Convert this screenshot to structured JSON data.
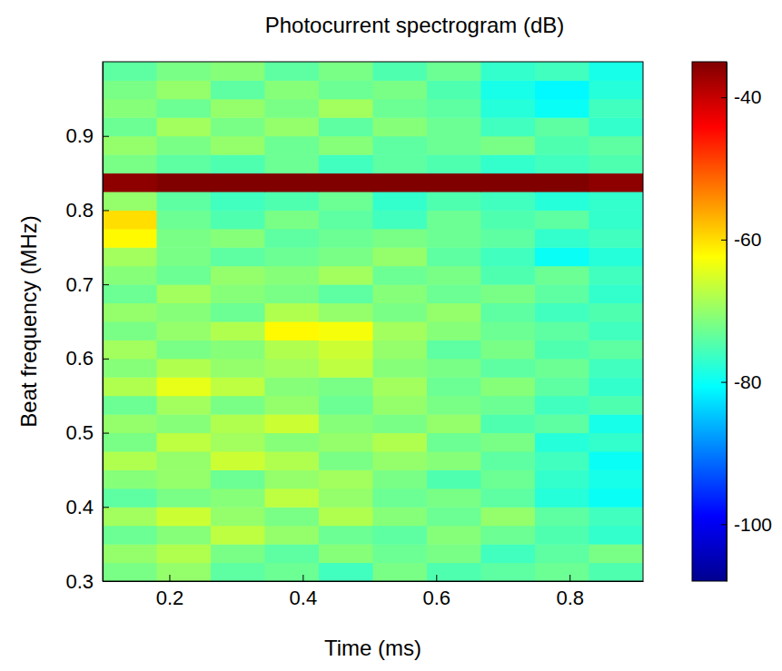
{
  "chart_data": {
    "type": "heatmap",
    "title": "Photocurrent spectrogram (dB)",
    "x_label": "Time (ms)",
    "y_label": "Beat frequency (MHz)",
    "xlim": [
      0.1,
      0.91
    ],
    "ylim": [
      0.3,
      1.0
    ],
    "xticks": [
      0.2,
      0.4,
      0.6,
      0.8
    ],
    "yticks": [
      0.3,
      0.4,
      0.5,
      0.6,
      0.7,
      0.8,
      0.9
    ],
    "x_edges": [
      0.1,
      0.181,
      0.262,
      0.343,
      0.424,
      0.505,
      0.586,
      0.667,
      0.748,
      0.829,
      0.91
    ],
    "y_edges": [
      0.3,
      0.325,
      0.35,
      0.375,
      0.4,
      0.425,
      0.45,
      0.475,
      0.5,
      0.525,
      0.55,
      0.575,
      0.6,
      0.625,
      0.65,
      0.675,
      0.7,
      0.725,
      0.75,
      0.775,
      0.8,
      0.825,
      0.85,
      0.875,
      0.9,
      0.925,
      0.95,
      0.975,
      1.0
    ],
    "values": [
      [
        -72,
        -70,
        -74,
        -73,
        -76,
        -72,
        -75,
        -74,
        -73,
        -75
      ],
      [
        -70,
        -68,
        -72,
        -74,
        -71,
        -73,
        -72,
        -76,
        -74,
        -72
      ],
      [
        -73,
        -71,
        -67,
        -70,
        -73,
        -74,
        -71,
        -73,
        -75,
        -77
      ],
      [
        -69,
        -66,
        -70,
        -72,
        -68,
        -71,
        -73,
        -70,
        -74,
        -76
      ],
      [
        -74,
        -72,
        -71,
        -67,
        -70,
        -73,
        -72,
        -74,
        -78,
        -80
      ],
      [
        -71,
        -70,
        -73,
        -70,
        -69,
        -72,
        -75,
        -73,
        -77,
        -79
      ],
      [
        -68,
        -70,
        -66,
        -68,
        -72,
        -70,
        -71,
        -74,
        -76,
        -80
      ],
      [
        -72,
        -67,
        -69,
        -71,
        -70,
        -68,
        -73,
        -72,
        -78,
        -77
      ],
      [
        -70,
        -71,
        -68,
        -66,
        -71,
        -72,
        -70,
        -75,
        -74,
        -79
      ],
      [
        -73,
        -69,
        -72,
        -70,
        -73,
        -70,
        -72,
        -73,
        -76,
        -75
      ],
      [
        -68,
        -64,
        -67,
        -71,
        -72,
        -69,
        -73,
        -71,
        -74,
        -77
      ],
      [
        -71,
        -68,
        -70,
        -69,
        -67,
        -71,
        -72,
        -74,
        -73,
        -76
      ],
      [
        -69,
        -72,
        -71,
        -68,
        -66,
        -70,
        -74,
        -72,
        -75,
        -74
      ],
      [
        -72,
        -70,
        -68,
        -62,
        -63,
        -69,
        -71,
        -73,
        -74,
        -76
      ],
      [
        -70,
        -71,
        -73,
        -68,
        -70,
        -72,
        -70,
        -74,
        -76,
        -75
      ],
      [
        -73,
        -69,
        -71,
        -72,
        -74,
        -71,
        -73,
        -72,
        -74,
        -77
      ],
      [
        -71,
        -73,
        -70,
        -71,
        -69,
        -73,
        -72,
        -75,
        -73,
        -76
      ],
      [
        -69,
        -72,
        -74,
        -73,
        -72,
        -70,
        -74,
        -76,
        -80,
        -78
      ],
      [
        -62,
        -72,
        -71,
        -74,
        -73,
        -72,
        -73,
        -74,
        -77,
        -76
      ],
      [
        -60,
        -73,
        -75,
        -72,
        -74,
        -76,
        -73,
        -75,
        -74,
        -77
      ],
      [
        -70,
        -74,
        -76,
        -75,
        -73,
        -77,
        -75,
        -76,
        -78,
        -77
      ],
      [
        -36,
        -35,
        -35,
        -35,
        -35,
        -35,
        -35,
        -35,
        -35,
        -36
      ],
      [
        -72,
        -74,
        -75,
        -73,
        -76,
        -74,
        -75,
        -77,
        -76,
        -75
      ],
      [
        -70,
        -72,
        -70,
        -73,
        -71,
        -74,
        -73,
        -72,
        -75,
        -74
      ],
      [
        -73,
        -69,
        -72,
        -70,
        -74,
        -71,
        -73,
        -76,
        -74,
        -77
      ],
      [
        -71,
        -73,
        -70,
        -72,
        -69,
        -73,
        -74,
        -78,
        -80,
        -76
      ],
      [
        -72,
        -70,
        -74,
        -71,
        -73,
        -72,
        -75,
        -79,
        -81,
        -78
      ],
      [
        -74,
        -72,
        -71,
        -74,
        -72,
        -75,
        -73,
        -77,
        -76,
        -79
      ]
    ],
    "colorbar_range": [
      -108,
      -35
    ],
    "colorbar_ticks": [
      -40,
      -60,
      -80,
      -100
    ]
  }
}
